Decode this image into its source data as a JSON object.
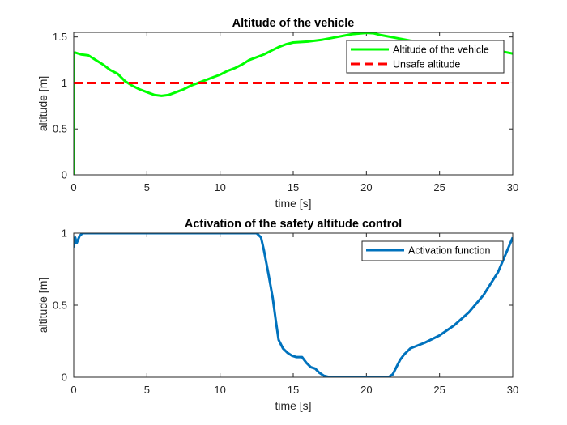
{
  "chart_data": [
    {
      "type": "line",
      "title": "Altitude of the vehicle",
      "xlabel": "time [s]",
      "ylabel": "altitude [m]",
      "xlim": [
        0,
        30
      ],
      "ylim": [
        0,
        1.55
      ],
      "xticks": [
        0,
        5,
        10,
        15,
        20,
        25,
        30
      ],
      "xtick_labels": [
        "0",
        "5",
        "10",
        "15",
        "20",
        "25",
        "30"
      ],
      "yticks": [
        0,
        0.5,
        1,
        1.5
      ],
      "ytick_labels": [
        "0",
        "0.5",
        "1",
        "1.5"
      ],
      "grid": false,
      "legend_position": "top-right",
      "series": [
        {
          "name": "Altitude of the vehicle",
          "color": "#00ff00",
          "style": "solid",
          "x": [
            0.0,
            0.02,
            0.1,
            0.5,
            1.0,
            1.5,
            2.0,
            2.5,
            3.0,
            3.5,
            4.0,
            4.5,
            5.0,
            5.5,
            6.0,
            6.5,
            7.0,
            7.5,
            8.0,
            8.5,
            9.0,
            9.5,
            10.0,
            10.5,
            11.0,
            11.5,
            12.0,
            12.5,
            13.0,
            13.5,
            14.0,
            14.5,
            15.0,
            16.0,
            17.0,
            18.0,
            19.0,
            20.0,
            20.5,
            21.0,
            22.0,
            23.0,
            24.0,
            25.0,
            26.0,
            27.0,
            28.0,
            29.0,
            30.0
          ],
          "y": [
            0.0,
            1.33,
            1.33,
            1.31,
            1.3,
            1.25,
            1.2,
            1.14,
            1.1,
            1.02,
            0.97,
            0.93,
            0.9,
            0.87,
            0.86,
            0.87,
            0.9,
            0.93,
            0.97,
            1.0,
            1.03,
            1.06,
            1.09,
            1.13,
            1.16,
            1.2,
            1.25,
            1.28,
            1.31,
            1.35,
            1.39,
            1.42,
            1.44,
            1.45,
            1.47,
            1.5,
            1.53,
            1.545,
            1.54,
            1.52,
            1.49,
            1.46,
            1.44,
            1.42,
            1.41,
            1.38,
            1.37,
            1.35,
            1.32
          ]
        },
        {
          "name": "Unsafe altitude",
          "color": "#ff0000",
          "style": "dashed",
          "x": [
            0,
            30
          ],
          "y": [
            1,
            1
          ]
        }
      ]
    },
    {
      "type": "line",
      "title": "Activation of the safety altitude control",
      "xlabel": "time [s]",
      "ylabel": "altitude [m]",
      "xlim": [
        0,
        30
      ],
      "ylim": [
        0,
        1
      ],
      "xticks": [
        0,
        5,
        10,
        15,
        20,
        25,
        30
      ],
      "xtick_labels": [
        "0",
        "5",
        "10",
        "15",
        "20",
        "25",
        "30"
      ],
      "yticks": [
        0,
        0.5,
        1
      ],
      "ytick_labels": [
        "0",
        "0.5",
        "1"
      ],
      "grid": false,
      "legend_position": "top-right",
      "series": [
        {
          "name": "Activation function",
          "color": "#0072bd",
          "style": "solid",
          "x": [
            0.0,
            0.1,
            0.2,
            0.4,
            0.6,
            1.0,
            5.0,
            10.0,
            12.5,
            12.8,
            13.0,
            13.3,
            13.6,
            13.8,
            14.0,
            14.3,
            14.6,
            14.9,
            15.2,
            15.6,
            15.9,
            16.2,
            16.5,
            16.8,
            17.1,
            17.5,
            20.0,
            21.5,
            21.8,
            22.0,
            22.3,
            22.6,
            23.0,
            24.0,
            25.0,
            26.0,
            27.0,
            28.0,
            29.0,
            30.0
          ],
          "y": [
            0.9,
            0.97,
            0.93,
            0.98,
            1.0,
            1.0,
            1.0,
            1.0,
            1.0,
            0.97,
            0.88,
            0.72,
            0.55,
            0.4,
            0.26,
            0.2,
            0.17,
            0.15,
            0.14,
            0.14,
            0.1,
            0.07,
            0.06,
            0.03,
            0.01,
            0.0,
            0.0,
            0.0,
            0.02,
            0.06,
            0.12,
            0.16,
            0.2,
            0.24,
            0.29,
            0.36,
            0.45,
            0.57,
            0.73,
            0.97
          ]
        }
      ]
    }
  ]
}
